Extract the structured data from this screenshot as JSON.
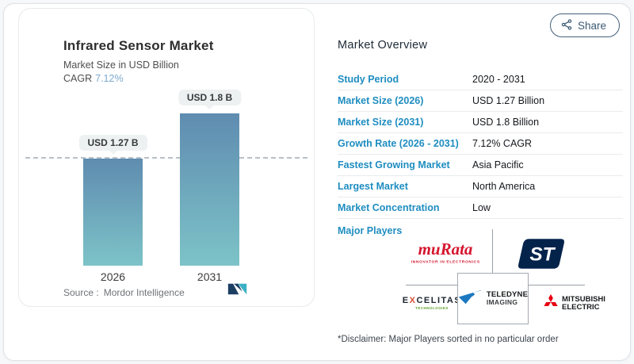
{
  "chart_card": {
    "title": "Infrared Sensor Market",
    "subtitle": "Market Size in USD Billion",
    "cagr_label": "CAGR",
    "cagr_value": "7.12%",
    "source_label": "Source :",
    "source_name": "Mordor Intelligence"
  },
  "chart_data": {
    "type": "bar",
    "title": "Infrared Sensor Market",
    "ylabel": "Market Size in USD Billion",
    "categories": [
      "2026",
      "2031"
    ],
    "values": [
      1.27,
      1.8
    ],
    "bar_labels": [
      "USD 1.27 B",
      "USD 1.8 B"
    ],
    "unit": "USD Billion",
    "cagr_percent": 7.12,
    "reference_line": 1.27,
    "ylim": [
      0,
      2
    ],
    "grid": false,
    "legend": false,
    "bar_color_top": "#5f8cb0",
    "bar_color_bottom": "#7dc3c8"
  },
  "share_button": {
    "label": "Share"
  },
  "overview": {
    "title": "Market Overview",
    "rows": [
      {
        "label": "Study Period",
        "value": "2020 - 2031"
      },
      {
        "label": "Market Size (2026)",
        "value": "USD 1.27 Billion"
      },
      {
        "label": "Market Size (2031)",
        "value": "USD 1.8 Billion"
      },
      {
        "label": "Growth Rate (2026 - 2031)",
        "value": "7.12% CAGR"
      },
      {
        "label": "Fastest Growing Market",
        "value": "Asia Pacific"
      },
      {
        "label": "Largest Market",
        "value": "North America"
      },
      {
        "label": "Market Concentration",
        "value": "Low"
      }
    ],
    "major_players_label": "Major Players",
    "players": {
      "murata": {
        "name": "muRata",
        "tagline": "INNOVATOR IN ELECTRONICS"
      },
      "st": {
        "monogram": "ST"
      },
      "excelitas": {
        "name_pre": "E",
        "name_x": "X",
        "name_post": "CELITAS",
        "tagline": "TECHNOLOGIES"
      },
      "teledyne": {
        "name": "TELEDYNE",
        "sub": "IMAGING"
      },
      "mitsubishi": {
        "name": "MITSUBISHI",
        "sub": "ELECTRIC"
      }
    },
    "disclaimer": "*Disclaimer: Major Players sorted in no particular order"
  },
  "colors": {
    "label_blue": "#1f8dc0",
    "cagr_blue": "#7ea9cd",
    "murata_red": "#d5152e",
    "st_navy": "#03234b",
    "teledyne_blue": "#1c79c0",
    "mitsubishi_red": "#e60012",
    "excelitas_green": "#5a9e26",
    "share_border": "#44617b"
  }
}
